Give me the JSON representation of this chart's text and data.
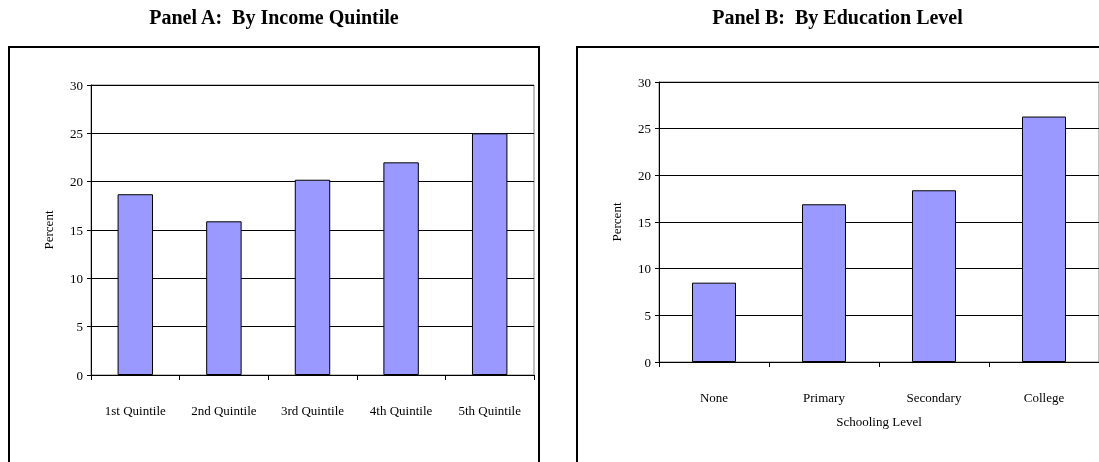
{
  "chart_data": [
    {
      "type": "bar",
      "title": "Panel A:  By Income Quintile",
      "ylabel": "Percent",
      "categories": [
        "1st Quintile",
        "2nd Quintile",
        "3rd Quintile",
        "4th Quintile",
        "5th Quintile"
      ],
      "values": [
        18.7,
        15.9,
        20.2,
        22.0,
        25.0
      ],
      "color": "#9999ff",
      "ylim": [
        0,
        30
      ],
      "yticks": [
        0,
        5,
        10,
        15,
        20,
        25,
        30
      ],
      "grid": "y"
    },
    {
      "type": "bar",
      "title": "Panel B:  By Education Level",
      "ylabel": "Percent",
      "xlabel": "Schooling Level",
      "categories": [
        "None",
        "Primary",
        "Secondary",
        "College"
      ],
      "values": [
        8.5,
        16.9,
        18.4,
        26.3
      ],
      "color": "#9999ff",
      "ylim": [
        0,
        30
      ],
      "yticks": [
        0,
        5,
        10,
        15,
        20,
        25,
        30
      ],
      "grid": "y"
    }
  ]
}
